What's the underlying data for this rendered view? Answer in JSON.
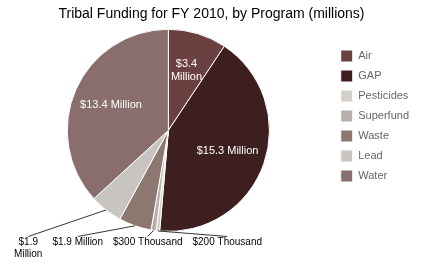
{
  "chart_data": {
    "type": "pie",
    "title": "Tribal Funding for FY 2010, by Program (millions)",
    "categories": [
      "Air",
      "GAP",
      "Pesticides",
      "Superfund",
      "Waste",
      "Lead",
      "Water"
    ],
    "values": [
      3.4,
      15.3,
      0.2,
      0.3,
      1.9,
      1.9,
      13.4
    ],
    "value_labels": [
      "$3.4\nMillion",
      "$15.3 Million",
      "$200 Thousand",
      "$300 Thousand",
      "$1.9 Million",
      "$1.9\nMillion",
      "$13.4 Million"
    ],
    "colors": [
      "#6b4040",
      "#3d1f1f",
      "#d4cec8",
      "#b8b0ac",
      "#8c7870",
      "#c8c4c0",
      "#8a6e6e"
    ],
    "data_labels": true,
    "legend": "right"
  }
}
